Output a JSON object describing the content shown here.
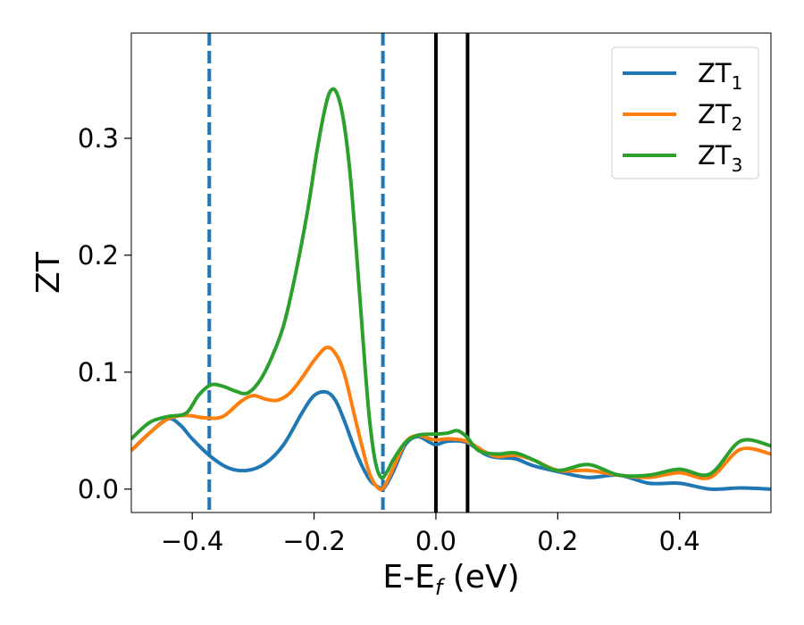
{
  "chart_data": {
    "type": "line",
    "xlabel": "E-E",
    "xlabel_sub": "f",
    "xlabel_unit": " (eV)",
    "ylabel": "ZT",
    "xlim": [
      -0.5,
      0.55
    ],
    "ylim": [
      -0.02,
      0.39
    ],
    "xticks": [
      -0.4,
      -0.2,
      0.0,
      0.2,
      0.4
    ],
    "xtick_labels": [
      "−0.4",
      "−0.2",
      "0.0",
      "0.2",
      "0.4"
    ],
    "yticks": [
      0.0,
      0.1,
      0.2,
      0.3
    ],
    "ytick_labels": [
      "0.0",
      "0.1",
      "0.2",
      "0.3"
    ],
    "grid": false,
    "legend_position": "top-right",
    "vlines": [
      {
        "x": -0.372,
        "style": "dashed",
        "color": "#1f77b4"
      },
      {
        "x": -0.087,
        "style": "dashed",
        "color": "#1f77b4"
      },
      {
        "x": 0.0,
        "style": "solid",
        "color": "#000000"
      },
      {
        "x": 0.052,
        "style": "solid",
        "color": "#000000"
      }
    ],
    "series": [
      {
        "name": "ZT",
        "name_sub": "1",
        "color": "#1f77b4",
        "x": [
          -0.5,
          -0.47,
          -0.44,
          -0.42,
          -0.4,
          -0.37,
          -0.34,
          -0.31,
          -0.28,
          -0.25,
          -0.22,
          -0.2,
          -0.18,
          -0.165,
          -0.15,
          -0.13,
          -0.11,
          -0.095,
          -0.085,
          -0.07,
          -0.05,
          -0.03,
          -0.01,
          0.0,
          0.02,
          0.05,
          0.08,
          0.1,
          0.13,
          0.16,
          0.2,
          0.25,
          0.3,
          0.35,
          0.4,
          0.45,
          0.5,
          0.55
        ],
        "y": [
          0.033,
          0.048,
          0.06,
          0.055,
          0.043,
          0.028,
          0.018,
          0.016,
          0.022,
          0.038,
          0.065,
          0.08,
          0.083,
          0.076,
          0.058,
          0.03,
          0.009,
          0.002,
          0.001,
          0.015,
          0.038,
          0.045,
          0.04,
          0.038,
          0.041,
          0.04,
          0.03,
          0.027,
          0.026,
          0.02,
          0.015,
          0.01,
          0.012,
          0.005,
          0.005,
          0.0,
          0.001,
          0.0
        ]
      },
      {
        "name": "ZT",
        "name_sub": "2",
        "color": "#ff7f0e",
        "x": [
          -0.5,
          -0.47,
          -0.44,
          -0.41,
          -0.38,
          -0.35,
          -0.32,
          -0.3,
          -0.28,
          -0.26,
          -0.24,
          -0.22,
          -0.2,
          -0.18,
          -0.165,
          -0.15,
          -0.13,
          -0.11,
          -0.095,
          -0.085,
          -0.07,
          -0.05,
          -0.03,
          -0.01,
          0.0,
          0.02,
          0.05,
          0.08,
          0.1,
          0.13,
          0.16,
          0.2,
          0.25,
          0.3,
          0.35,
          0.4,
          0.45,
          0.5,
          0.55
        ],
        "y": [
          0.033,
          0.048,
          0.06,
          0.063,
          0.061,
          0.062,
          0.075,
          0.08,
          0.077,
          0.076,
          0.082,
          0.095,
          0.11,
          0.121,
          0.116,
          0.098,
          0.055,
          0.015,
          0.001,
          0.002,
          0.018,
          0.04,
          0.046,
          0.043,
          0.042,
          0.043,
          0.041,
          0.032,
          0.028,
          0.029,
          0.025,
          0.016,
          0.016,
          0.012,
          0.01,
          0.014,
          0.01,
          0.034,
          0.03
        ]
      },
      {
        "name": "ZT",
        "name_sub": "3",
        "color": "#2ca02c",
        "x": [
          -0.5,
          -0.47,
          -0.44,
          -0.41,
          -0.39,
          -0.37,
          -0.35,
          -0.33,
          -0.31,
          -0.29,
          -0.27,
          -0.25,
          -0.23,
          -0.21,
          -0.195,
          -0.18,
          -0.17,
          -0.16,
          -0.15,
          -0.14,
          -0.13,
          -0.12,
          -0.11,
          -0.1,
          -0.09,
          -0.08,
          -0.07,
          -0.05,
          -0.03,
          -0.01,
          0.0,
          0.02,
          0.035,
          0.05,
          0.07,
          0.1,
          0.13,
          0.16,
          0.2,
          0.25,
          0.3,
          0.35,
          0.4,
          0.45,
          0.5,
          0.55
        ],
        "y": [
          0.043,
          0.057,
          0.062,
          0.065,
          0.08,
          0.089,
          0.088,
          0.084,
          0.082,
          0.092,
          0.112,
          0.14,
          0.185,
          0.24,
          0.29,
          0.33,
          0.342,
          0.335,
          0.31,
          0.265,
          0.2,
          0.13,
          0.065,
          0.025,
          0.01,
          0.015,
          0.025,
          0.04,
          0.046,
          0.047,
          0.047,
          0.048,
          0.05,
          0.045,
          0.033,
          0.03,
          0.031,
          0.025,
          0.016,
          0.021,
          0.012,
          0.012,
          0.017,
          0.013,
          0.041,
          0.037
        ]
      }
    ]
  }
}
